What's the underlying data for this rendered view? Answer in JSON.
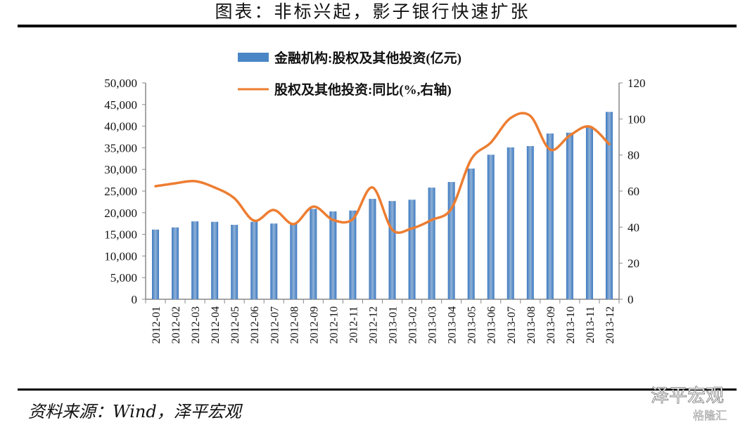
{
  "title": "图表：非标兴起，影子银行快速扩张",
  "source": "资料来源：Wind，泽平宏观",
  "watermark": {
    "main": "泽平宏观",
    "sub": "格隆汇"
  },
  "colors": {
    "bar": "#4a86c6",
    "line": "#ed7d31"
  },
  "chart_data": {
    "type": "bar+line",
    "categories": [
      "2012-01",
      "2012-02",
      "2012-03",
      "2012-04",
      "2012-05",
      "2012-06",
      "2012-07",
      "2012-08",
      "2012-09",
      "2012-10",
      "2012-11",
      "2012-12",
      "2013-01",
      "2013-02",
      "2013-03",
      "2013-04",
      "2013-05",
      "2013-06",
      "2013-07",
      "2013-08",
      "2013-09",
      "2013-10",
      "2013-11",
      "2013-12"
    ],
    "series": [
      {
        "name": "金融机构:股权及其他投资(亿元)",
        "type": "bar",
        "axis": "left",
        "values": [
          16100,
          16600,
          18000,
          17900,
          17200,
          17900,
          17500,
          17400,
          20900,
          20300,
          20500,
          23200,
          22700,
          23000,
          25800,
          27100,
          30200,
          33400,
          35100,
          35400,
          38300,
          38500,
          39900,
          43300
        ]
      },
      {
        "name": "股权及其他投资:同比(%,右轴)",
        "type": "line",
        "axis": "right",
        "values": [
          62.7,
          64.3,
          65.5,
          62,
          56,
          43.6,
          49.5,
          41.7,
          51.4,
          44,
          44.4,
          62,
          38.6,
          39.3,
          44,
          50.3,
          77.5,
          86.9,
          100.5,
          101.7,
          83,
          90.8,
          95.8,
          86
        ]
      }
    ],
    "left_axis": {
      "range": [
        0,
        50000
      ],
      "ticks": [
        "0",
        "5,000",
        "10,000",
        "15,000",
        "20,000",
        "25,000",
        "30,000",
        "35,000",
        "40,000",
        "45,000",
        "50,000"
      ]
    },
    "right_axis": {
      "range": [
        0,
        120
      ],
      "ticks": [
        "0",
        "20",
        "40",
        "60",
        "80",
        "100",
        "120"
      ]
    },
    "legend": "top-center",
    "grid": false
  }
}
